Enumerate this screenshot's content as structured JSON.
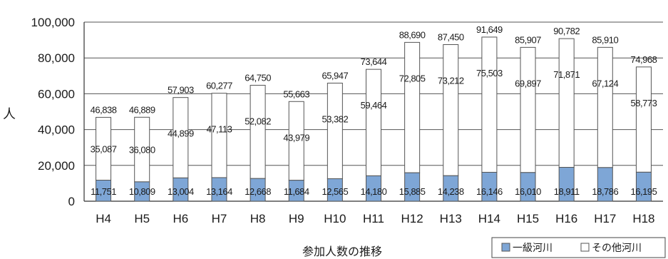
{
  "chart_data": {
    "type": "bar",
    "stacked": true,
    "categories": [
      "H4",
      "H5",
      "H6",
      "H7",
      "H8",
      "H9",
      "H10",
      "H11",
      "H12",
      "H13",
      "H14",
      "H15",
      "H16",
      "H17",
      "H18"
    ],
    "series": [
      {
        "name": "一級河川",
        "color": "#7ea6d6",
        "values": [
          11751,
          10809,
          13004,
          13164,
          12668,
          11684,
          12565,
          14180,
          15885,
          14238,
          16146,
          16010,
          18911,
          18786,
          16195
        ],
        "labels": [
          "11,751",
          "10,809",
          "13,004",
          "13,164",
          "12,668",
          "11,684",
          "12,565",
          "14,180",
          "15,885",
          "14,238",
          "16,146",
          "16,010",
          "18,911",
          "18,786",
          "16,195"
        ]
      },
      {
        "name": "その他河川",
        "color": "#ffffff",
        "values": [
          35087,
          36080,
          44899,
          47113,
          52082,
          43979,
          53382,
          59464,
          72805,
          73212,
          75503,
          69897,
          71871,
          67124,
          58773
        ],
        "labels": [
          "35,087",
          "36,080",
          "44,899",
          "47,113",
          "52,082",
          "43,979",
          "53,382",
          "59,464",
          "72,805",
          "73,212",
          "75,503",
          "69,897",
          "71,871",
          "67,124",
          "58,773"
        ]
      }
    ],
    "totals": [
      46838,
      46889,
      57903,
      60277,
      64750,
      55663,
      65947,
      73644,
      88690,
      87450,
      91649,
      85907,
      90782,
      85910,
      74968
    ],
    "total_labels": [
      "46,838",
      "46,889",
      "57,903",
      "60,277",
      "64,750",
      "55,663",
      "65,947",
      "73,644",
      "88,690",
      "87,450",
      "91,649",
      "85,907",
      "90,782",
      "85,910",
      "74,968"
    ],
    "ylabel": "人",
    "caption": "参加人数の推移",
    "ylim": [
      0,
      100000
    ],
    "yticks": [
      0,
      20000,
      40000,
      60000,
      80000,
      100000
    ],
    "ytick_labels": [
      "0",
      "20,000",
      "40,000",
      "60,000",
      "80,000",
      "100,000"
    ],
    "grid": true,
    "legend": {
      "placement": "bottom-right",
      "entries": [
        "一級河川",
        "その他河川"
      ]
    }
  }
}
